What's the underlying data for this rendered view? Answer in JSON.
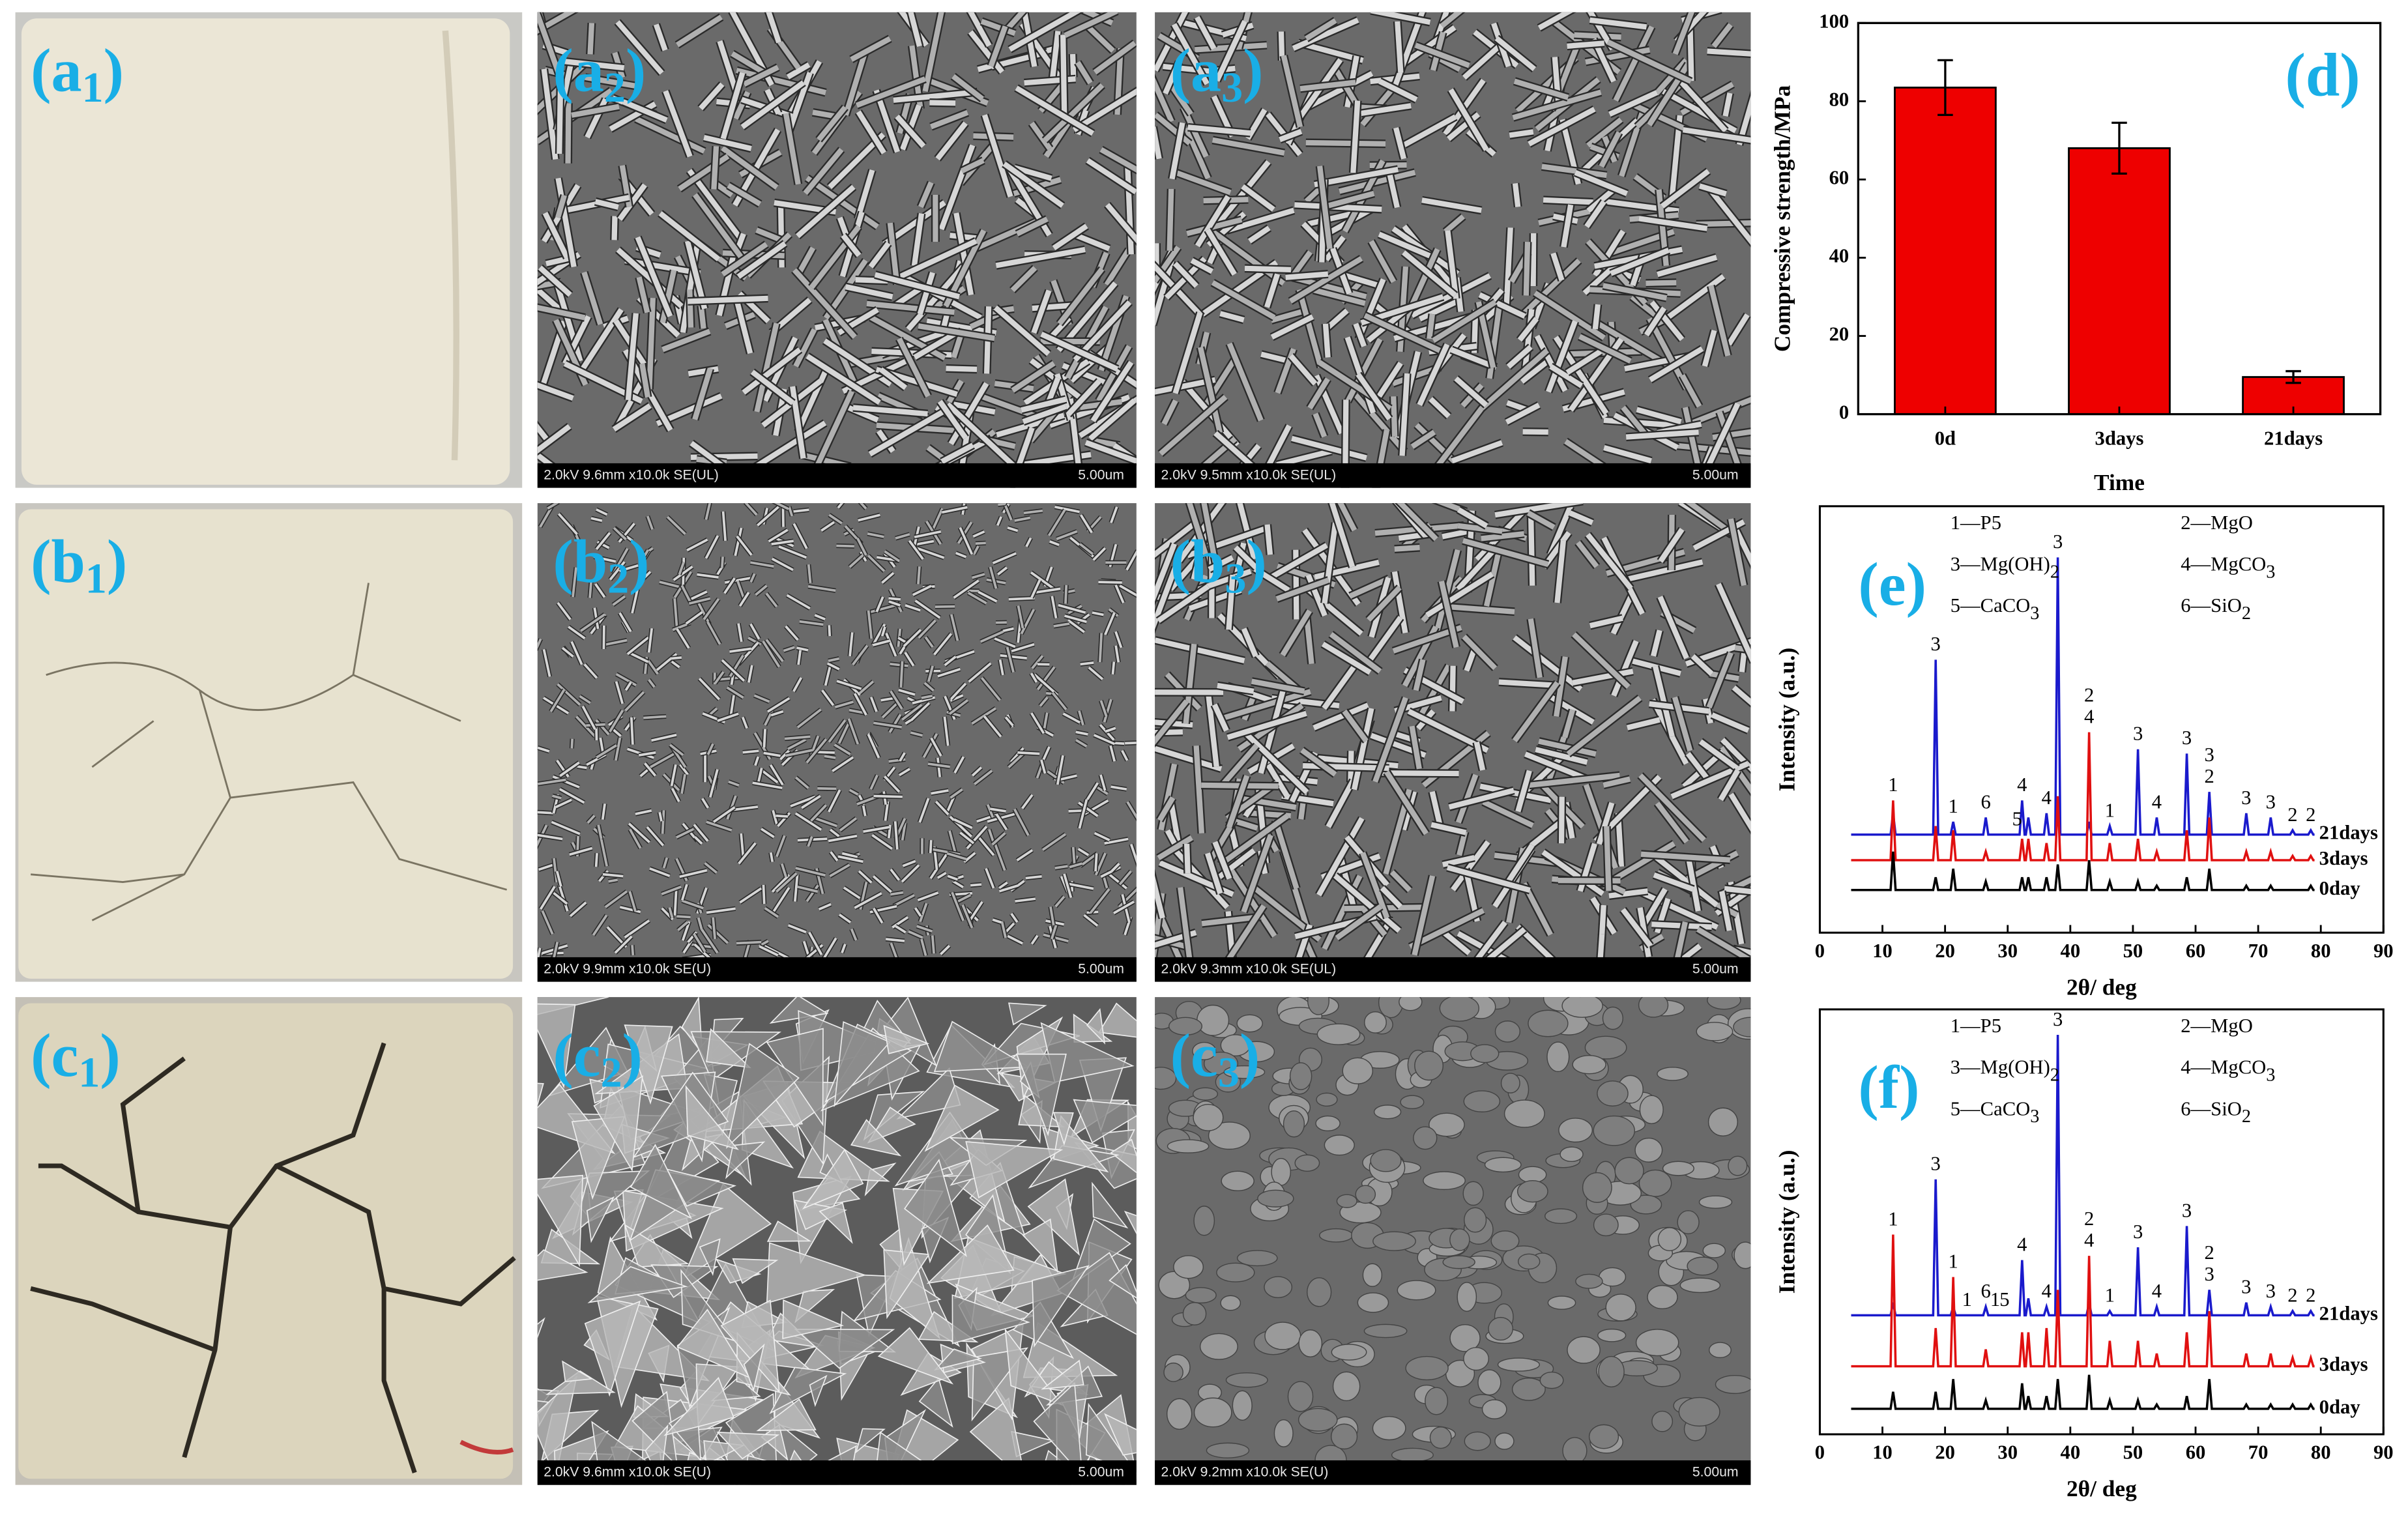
{
  "panels": [
    {
      "label": [
        "(a",
        "1",
        ")"
      ]
    },
    {
      "label": [
        "(a",
        "2",
        ")"
      ],
      "caption": "2.0kV 9.6mm x10.0k SE(UL)",
      "scale": "5.00um"
    },
    {
      "label": [
        "(a",
        "3",
        ")"
      ],
      "caption": "2.0kV 9.5mm x10.0k SE(UL)",
      "scale": "5.00um"
    },
    {
      "label": [
        "(b",
        "1",
        ")"
      ]
    },
    {
      "label": [
        "(b",
        "2",
        ")"
      ],
      "caption": "2.0kV 9.9mm x10.0k SE(U)",
      "scale": "5.00um"
    },
    {
      "label": [
        "(b",
        "3",
        ")"
      ],
      "caption": "2.0kV 9.3mm x10.0k SE(UL)",
      "scale": "5.00um"
    },
    {
      "label": [
        "(c",
        "1",
        ")"
      ]
    },
    {
      "label": [
        "(c",
        "2",
        ")"
      ],
      "caption": "2.0kV 9.6mm x10.0k SE(U)",
      "scale": "5.00um"
    },
    {
      "label": [
        "(c",
        "3",
        ")"
      ],
      "caption": "2.0kV 9.2mm x10.0k SE(U)",
      "scale": "5.00um"
    }
  ],
  "chart_data": [
    {
      "type": "bar",
      "panel_label": "(d)",
      "ylabel": "Compressive strength/MPa",
      "xlabel": "Time",
      "categories": [
        "0d",
        "3days",
        "21days"
      ],
      "values": [
        83.5,
        68,
        9.5
      ],
      "errors": [
        7,
        6.5,
        1.5
      ],
      "color": "#ee0000",
      "ylim": [
        0,
        100
      ],
      "yticks": [
        0,
        20,
        40,
        60,
        80,
        100
      ]
    },
    {
      "type": "line",
      "panel_label": "(e)",
      "ylabel": "Intensity (a.u.)",
      "xlabel": "2θ/ deg",
      "xlim": [
        0,
        90
      ],
      "xticks": [
        0,
        10,
        20,
        30,
        40,
        50,
        60,
        70,
        80,
        90
      ],
      "ylim": [
        0,
        100
      ],
      "x": [
        5,
        11.3,
        11.7,
        12.1,
        18.1,
        18.5,
        18.9,
        20.9,
        21.3,
        21.7,
        26.1,
        26.5,
        26.9,
        31.9,
        32.3,
        32.7,
        32.9,
        33.3,
        33.7,
        35.8,
        36.2,
        36.6,
        37.6,
        38.0,
        38.4,
        42.6,
        43.0,
        43.4,
        45.9,
        46.3,
        46.7,
        50.4,
        50.8,
        51.2,
        53.4,
        53.8,
        54.2,
        58.2,
        58.6,
        59.0,
        61.8,
        62.2,
        62.6,
        67.7,
        68.1,
        68.5,
        71.6,
        72.0,
        72.4,
        75.1,
        75.5,
        75.9,
        78.0,
        78.4,
        78.8,
        79
      ],
      "series": [
        {
          "name": "21days",
          "color": "#1a1acc",
          "values": [
            23,
            23,
            28,
            23,
            23,
            64,
            23,
            23,
            26,
            23,
            23,
            27,
            23,
            23,
            31,
            23,
            23,
            27,
            23,
            23,
            28,
            23,
            23,
            88,
            23,
            23,
            26,
            23,
            23,
            25,
            23,
            23,
            43,
            23,
            23,
            27,
            23,
            23,
            42,
            23,
            23,
            33,
            23,
            23,
            28,
            23,
            23,
            27,
            23,
            23,
            24,
            23,
            23,
            24,
            23,
            23
          ]
        },
        {
          "name": "3days",
          "color": "#e01010",
          "values": [
            17,
            17,
            31,
            17,
            17,
            25,
            17,
            17,
            24,
            17,
            17,
            19,
            17,
            17,
            22,
            17,
            17,
            22,
            17,
            17,
            21,
            17,
            17,
            32,
            17,
            17,
            47,
            17,
            17,
            21,
            17,
            17,
            22,
            17,
            17,
            19,
            17,
            17,
            24,
            17,
            17,
            27,
            17,
            17,
            19,
            17,
            17,
            19,
            17,
            17,
            18,
            17,
            17,
            18,
            17,
            17
          ]
        },
        {
          "name": "0day",
          "color": "#000000",
          "values": [
            10,
            10,
            19,
            10,
            10,
            13,
            10,
            10,
            15,
            10,
            10,
            12,
            10,
            10,
            13,
            10,
            10,
            13,
            10,
            10,
            13,
            10,
            10,
            16,
            10,
            10,
            17,
            10,
            10,
            12,
            10,
            10,
            12,
            10,
            10,
            11,
            10,
            10,
            13,
            10,
            10,
            15,
            10,
            10,
            11,
            10,
            10,
            11,
            10,
            10,
            10,
            10,
            10,
            11,
            10,
            10
          ]
        }
      ],
      "legend": [
        {
          "text": "1—P5"
        },
        {
          "text": "2—MgO"
        },
        {
          "text": "3—Mg(OH)",
          "sub": "2"
        },
        {
          "text": "4—MgCO",
          "sub": "3"
        },
        {
          "text": "5—CaCO",
          "sub": "3"
        },
        {
          "text": "6—SiO",
          "sub": "2"
        }
      ],
      "peak_labels": [
        {
          "x": 11.7,
          "text": "1"
        },
        {
          "x": 18.5,
          "text": "3"
        },
        {
          "x": 21.3,
          "text": "1"
        },
        {
          "x": 26.5,
          "text": "6"
        },
        {
          "x": 31.5,
          "text": "5"
        },
        {
          "x": 32.3,
          "text": "4"
        },
        {
          "x": 36.2,
          "text": "4"
        },
        {
          "x": 38.0,
          "text": "3"
        },
        {
          "x": 43.0,
          "text": "2"
        },
        {
          "x": 43.0,
          "text": "4"
        },
        {
          "x": 46.3,
          "text": "1"
        },
        {
          "x": 50.8,
          "text": "3"
        },
        {
          "x": 53.8,
          "text": "4"
        },
        {
          "x": 58.6,
          "text": "3"
        },
        {
          "x": 62.2,
          "text": "3"
        },
        {
          "x": 62.2,
          "text": "2"
        },
        {
          "x": 68.1,
          "text": "3"
        },
        {
          "x": 72.0,
          "text": "3"
        },
        {
          "x": 75.5,
          "text": "2"
        },
        {
          "x": 78.4,
          "text": "2"
        }
      ]
    },
    {
      "type": "line",
      "panel_label": "(f)",
      "ylabel": "Intensity (a.u.)",
      "xlabel": "2θ/ deg",
      "xlim": [
        0,
        90
      ],
      "xticks": [
        0,
        10,
        20,
        30,
        40,
        50,
        60,
        70,
        80,
        90
      ],
      "ylim": [
        0,
        100
      ],
      "x": [
        5,
        11.3,
        11.7,
        12.1,
        18.1,
        18.5,
        18.9,
        20.9,
        21.3,
        21.7,
        26.1,
        26.5,
        26.9,
        31.9,
        32.3,
        32.7,
        32.9,
        33.3,
        33.7,
        35.8,
        36.2,
        36.6,
        37.6,
        38.0,
        38.4,
        42.6,
        43.0,
        43.4,
        45.9,
        46.3,
        46.7,
        50.4,
        50.8,
        51.2,
        53.4,
        53.8,
        54.2,
        58.2,
        58.6,
        59.0,
        61.8,
        62.2,
        62.6,
        67.7,
        68.1,
        68.5,
        71.6,
        72.0,
        72.4,
        75.1,
        75.5,
        75.9,
        78.0,
        78.4,
        78.8,
        79
      ],
      "series": [
        {
          "name": "21days",
          "color": "#1a1acc",
          "values": [
            28,
            28,
            31,
            28,
            28,
            60,
            28,
            28,
            30,
            28,
            28,
            30,
            28,
            28,
            41,
            28,
            28,
            32,
            28,
            28,
            30,
            28,
            28,
            94,
            28,
            28,
            31,
            28,
            28,
            29,
            28,
            28,
            44,
            28,
            28,
            30,
            28,
            28,
            49,
            28,
            28,
            34,
            28,
            28,
            31,
            28,
            28,
            30,
            28,
            28,
            29,
            28,
            28,
            29,
            28,
            28
          ]
        },
        {
          "name": "3days",
          "color": "#e01010",
          "values": [
            16,
            16,
            47,
            16,
            16,
            25,
            16,
            16,
            37,
            16,
            16,
            20,
            16,
            16,
            24,
            16,
            16,
            24,
            16,
            16,
            25,
            16,
            16,
            34,
            16,
            16,
            42,
            16,
            16,
            22,
            16,
            16,
            22,
            16,
            16,
            19,
            16,
            16,
            24,
            16,
            16,
            29,
            16,
            16,
            19,
            16,
            16,
            19,
            16,
            16,
            18,
            16,
            16,
            18,
            16,
            16
          ]
        },
        {
          "name": "0day",
          "color": "#000000",
          "values": [
            6,
            6,
            10,
            6,
            6,
            10,
            6,
            6,
            13,
            6,
            6,
            8,
            6,
            6,
            12,
            6,
            6,
            9,
            6,
            6,
            9,
            6,
            6,
            13,
            6,
            6,
            14,
            6,
            6,
            8,
            6,
            6,
            8,
            6,
            6,
            7,
            6,
            6,
            9,
            6,
            6,
            13,
            6,
            6,
            7,
            6,
            6,
            7,
            6,
            6,
            7,
            6,
            6,
            7,
            6,
            6
          ]
        }
      ],
      "legend": [
        {
          "text": "1—P5"
        },
        {
          "text": "2—MgO"
        },
        {
          "text": "3—Mg(OH)",
          "sub": "2"
        },
        {
          "text": "4—MgCO",
          "sub": "3"
        },
        {
          "text": "5—CaCO",
          "sub": "3"
        },
        {
          "text": "6—SiO",
          "sub": "2"
        }
      ],
      "peak_labels": [
        {
          "x": 11.7,
          "text": "1"
        },
        {
          "x": 18.5,
          "text": "3"
        },
        {
          "x": 21.3,
          "text": "1"
        },
        {
          "x": 23.5,
          "text": "1"
        },
        {
          "x": 26.5,
          "text": "6"
        },
        {
          "x": 28.0,
          "text": "1"
        },
        {
          "x": 29.5,
          "text": "5"
        },
        {
          "x": 32.3,
          "text": "4"
        },
        {
          "x": 36.2,
          "text": "4"
        },
        {
          "x": 38.0,
          "text": "3"
        },
        {
          "x": 43.0,
          "text": "2"
        },
        {
          "x": 43.0,
          "text": "4"
        },
        {
          "x": 46.3,
          "text": "1"
        },
        {
          "x": 50.8,
          "text": "3"
        },
        {
          "x": 53.8,
          "text": "4"
        },
        {
          "x": 58.6,
          "text": "3"
        },
        {
          "x": 62.2,
          "text": "2"
        },
        {
          "x": 62.2,
          "text": "3"
        },
        {
          "x": 68.1,
          "text": "3"
        },
        {
          "x": 72.0,
          "text": "3"
        },
        {
          "x": 75.5,
          "text": "2"
        },
        {
          "x": 78.4,
          "text": "2"
        }
      ]
    }
  ]
}
